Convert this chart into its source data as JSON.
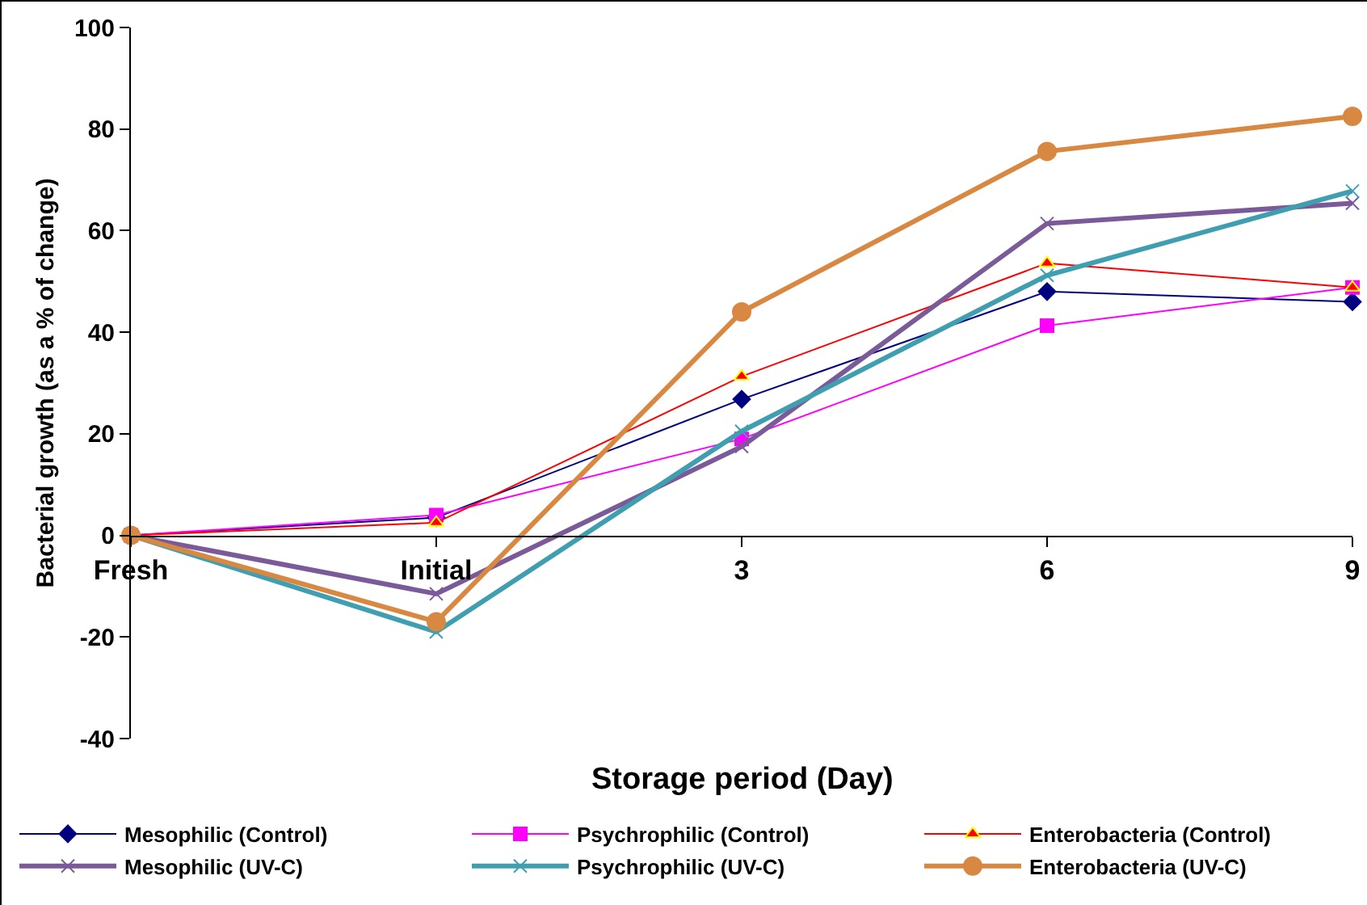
{
  "chart_data": {
    "type": "line",
    "xlabel": "Storage period (Day)",
    "ylabel": "Bacterial growth (as a % of change)",
    "categories": [
      "Fresh",
      "Initial",
      "3",
      "6",
      "9"
    ],
    "ylim": [
      -40,
      100
    ],
    "yticks": [
      -40,
      -20,
      0,
      20,
      40,
      60,
      80,
      100
    ],
    "grid": false,
    "legend": "bottom",
    "series": [
      {
        "name": "Mesophilic (Control)",
        "color": "#000080",
        "marker": "diamond",
        "values": [
          0,
          3.5,
          26.8,
          48,
          46
        ]
      },
      {
        "name": "Psychrophilic (Control)",
        "color": "#ff00ff",
        "marker": "square",
        "values": [
          0,
          4,
          19,
          41.3,
          48.8
        ]
      },
      {
        "name": "Enterobacteria (Control)",
        "color": "#ff0000",
        "marker": "triangle",
        "values": [
          0,
          2.5,
          31.3,
          53.6,
          48.8
        ]
      },
      {
        "name": "Mesophilic (UV-C)",
        "color": "#7b5a9a",
        "marker": "cross",
        "values": [
          0,
          -11.5,
          17.5,
          61.4,
          65.4
        ]
      },
      {
        "name": "Psychrophilic (UV-C)",
        "color": "#3f9fb0",
        "marker": "cross",
        "values": [
          0,
          -19,
          20.5,
          51.2,
          67.8
        ]
      },
      {
        "name": "Enterobacteria (UV-C)",
        "color": "#d88840",
        "marker": "circle",
        "values": [
          0,
          -17,
          44,
          75.6,
          82.5
        ]
      }
    ]
  }
}
